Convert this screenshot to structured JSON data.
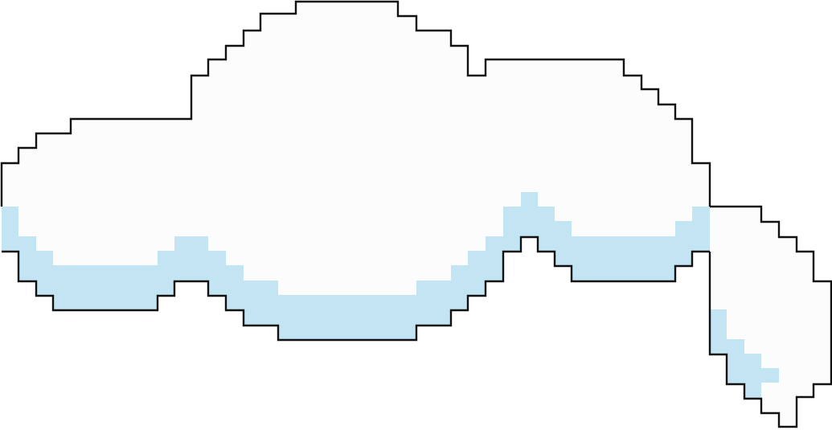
{
  "colors": {
    "background": "#ffffff",
    "cloud_fill": "#fcfcfc",
    "cloud_shadow": "#c3e4f2",
    "cloud_outline": "#111111"
  },
  "icon": "pixel-cloud-icon"
}
